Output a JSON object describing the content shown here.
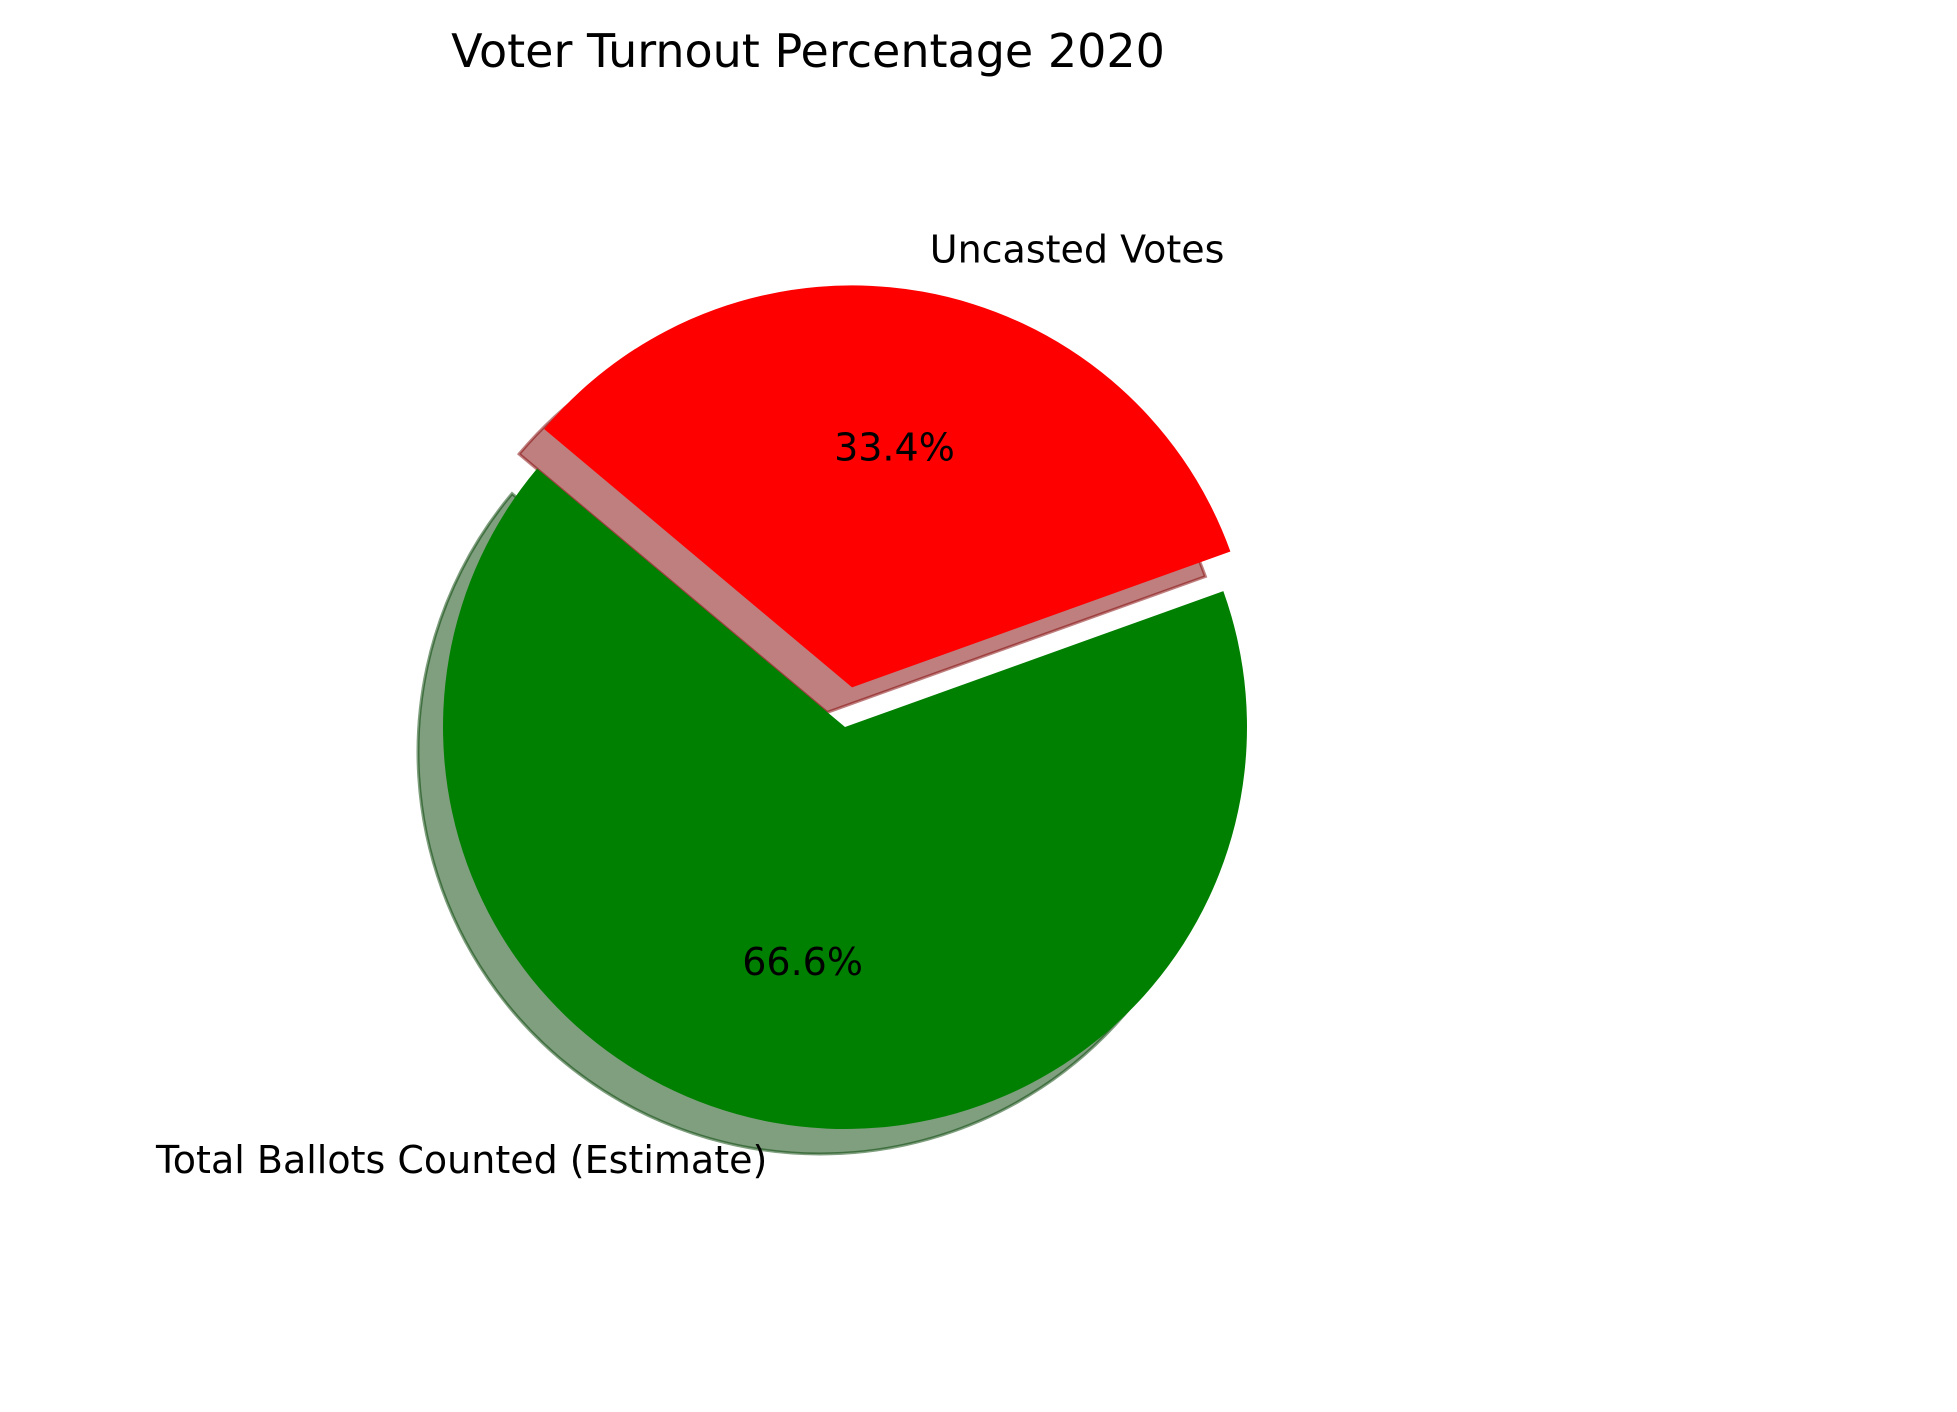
{
  "chart_data": {
    "type": "pie",
    "title": "Voter Turnout Percentage 2020",
    "slices": [
      {
        "label": "Total Ballots Counted (Estimate)",
        "value": 66.6,
        "pct_label": "66.6%",
        "color": "#008000",
        "exploded": false
      },
      {
        "label": "Uncasted Votes",
        "value": 33.4,
        "pct_label": "33.4%",
        "color": "#ff0000",
        "exploded": true
      }
    ],
    "shadow": true,
    "start_angle_deg": 140,
    "legend": "none"
  }
}
